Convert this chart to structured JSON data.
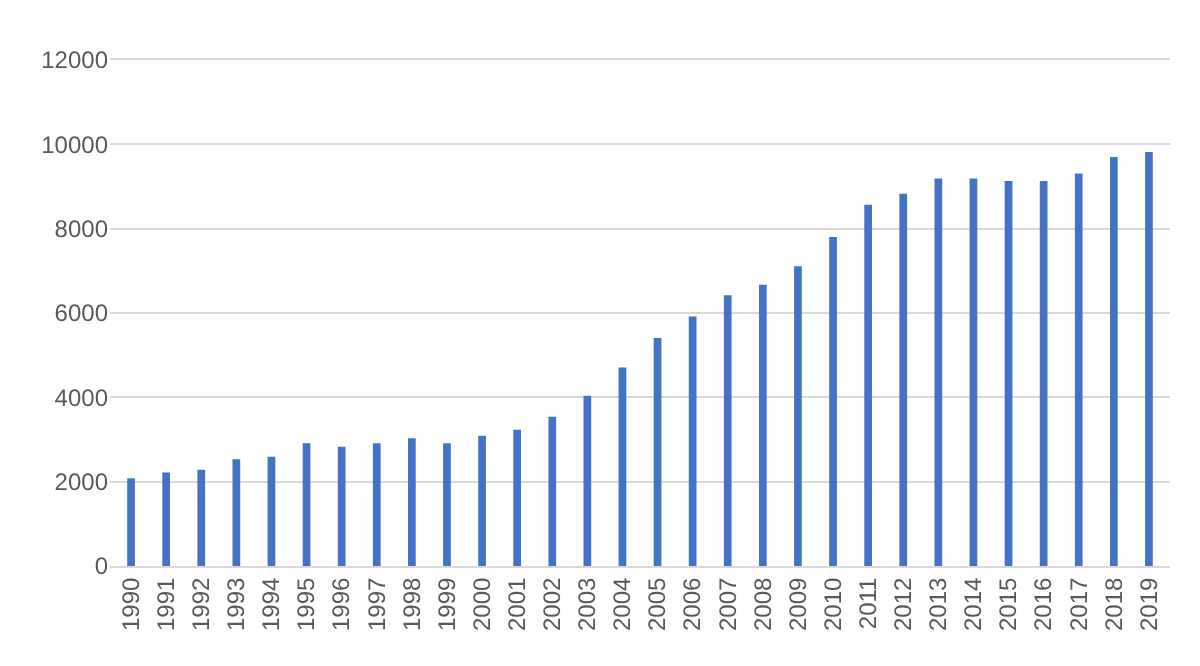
{
  "chart_data": {
    "type": "bar",
    "categories": [
      "1990",
      "1991",
      "1992",
      "1993",
      "1994",
      "1995",
      "1996",
      "1997",
      "1998",
      "1999",
      "2000",
      "2001",
      "2002",
      "2003",
      "2004",
      "2005",
      "2006",
      "2007",
      "2008",
      "2009",
      "2010",
      "2011",
      "2012",
      "2013",
      "2014",
      "2015",
      "2016",
      "2017",
      "2018",
      "2019"
    ],
    "values": [
      2080,
      2220,
      2280,
      2530,
      2590,
      2910,
      2830,
      2910,
      3030,
      2910,
      3090,
      3230,
      3540,
      4040,
      4710,
      5410,
      5920,
      6420,
      6670,
      7110,
      7800,
      8570,
      8830,
      9190,
      9190,
      9130,
      9130,
      9310,
      9700,
      9820
    ],
    "color": "#4472c4",
    "ylim": [
      0,
      12000
    ],
    "yticks": [
      0,
      2000,
      4000,
      6000,
      8000,
      10000,
      12000
    ],
    "grid": "y"
  }
}
